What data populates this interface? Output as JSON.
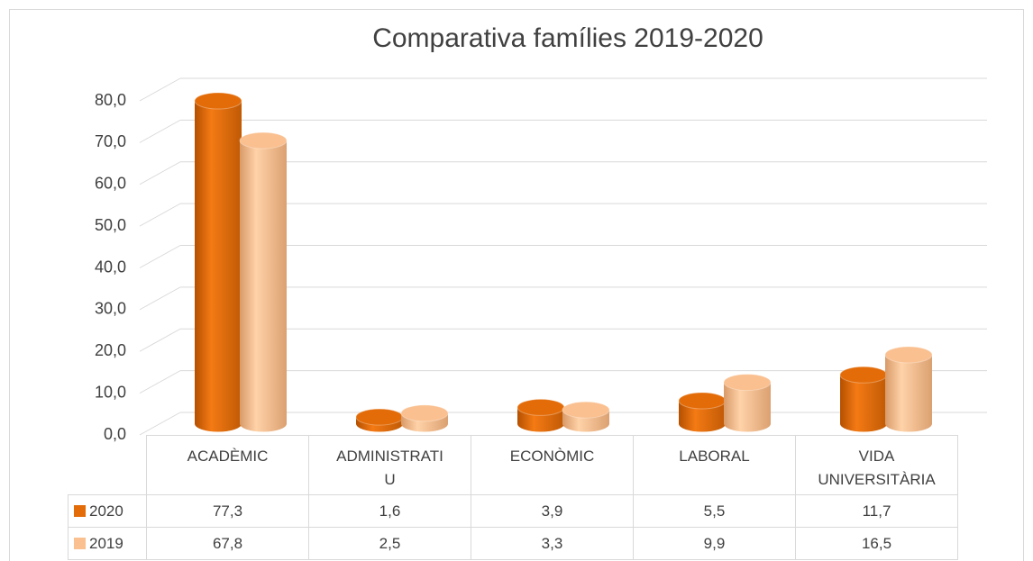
{
  "chart_data": {
    "type": "bar3d",
    "title": "Comparativa famílies 2019-2020",
    "categories": [
      "ACADÈMIC",
      "ADMINISTRATIU",
      "ECONÒMIC",
      "LABORAL",
      "VIDA UNIVERSITÀRIA"
    ],
    "series": [
      {
        "name": "2020",
        "color": "#e36c09",
        "values": [
          77.3,
          1.6,
          3.9,
          5.5,
          11.7
        ],
        "value_labels": [
          "77,3",
          "1,6",
          "3,9",
          "5,5",
          "11,7"
        ]
      },
      {
        "name": "2019",
        "color": "#fac090",
        "values": [
          67.8,
          2.5,
          3.3,
          9.9,
          16.5
        ],
        "value_labels": [
          "67,8",
          "2,5",
          "3,3",
          "9,9",
          "16,5"
        ]
      }
    ],
    "ylim": [
      0,
      80
    ],
    "yticks": [
      {
        "value": 0,
        "label": "0,0"
      },
      {
        "value": 10,
        "label": "10,0"
      },
      {
        "value": 20,
        "label": "20,0"
      },
      {
        "value": 30,
        "label": "30,0"
      },
      {
        "value": 40,
        "label": "40,0"
      },
      {
        "value": 50,
        "label": "50,0"
      },
      {
        "value": 60,
        "label": "60,0"
      },
      {
        "value": 70,
        "label": "70,0"
      },
      {
        "value": 80,
        "label": "80,0"
      }
    ],
    "grid": true
  }
}
